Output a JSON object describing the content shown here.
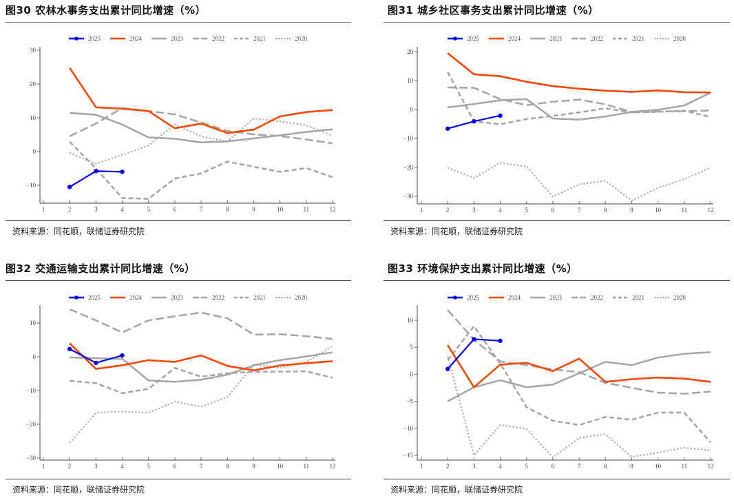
{
  "source_label": "资料来源：同花顺，联储证券研究院",
  "legend": [
    {
      "name": "2025",
      "color": "#0000FF",
      "style": "solid-marker"
    },
    {
      "name": "2024",
      "color": "#FF4500",
      "style": "solid"
    },
    {
      "name": "2023",
      "color": "#A6A6A6",
      "style": "solid"
    },
    {
      "name": "2022",
      "color": "#A6A6A6",
      "style": "longdash"
    },
    {
      "name": "2021",
      "color": "#A6A6A6",
      "style": "dash"
    },
    {
      "name": "2020",
      "color": "#A6A6A6",
      "style": "dot"
    }
  ],
  "chart_data": [
    {
      "type": "line",
      "title": "图30 农林水事务支出累计同比增速（%）",
      "xlabel": "",
      "ylabel": "",
      "x": [
        1,
        2,
        3,
        4,
        5,
        6,
        7,
        8,
        9,
        10,
        11,
        12
      ],
      "xticks": [
        "1",
        "2",
        "3",
        "4",
        "5",
        "6",
        "7",
        "8",
        "9",
        "10",
        "11",
        "12"
      ],
      "ylim": [
        -15,
        31
      ],
      "yticks": [
        30,
        20,
        10,
        0,
        -10
      ],
      "grid": false,
      "legend_position": "top",
      "series": [
        {
          "name": "2025",
          "values": [
            null,
            -10.5,
            -5.8,
            -6.0,
            null,
            null,
            null,
            null,
            null,
            null,
            null,
            null
          ]
        },
        {
          "name": "2024",
          "values": [
            null,
            24.8,
            13.1,
            12.7,
            12.0,
            6.9,
            8.3,
            5.5,
            6.5,
            10.4,
            11.7,
            12.3
          ]
        },
        {
          "name": "2023",
          "values": [
            null,
            11.4,
            10.9,
            8.0,
            4.2,
            3.8,
            2.7,
            3.0,
            3.9,
            4.8,
            5.8,
            6.6
          ]
        },
        {
          "name": "2022",
          "values": [
            null,
            4.5,
            8.3,
            12.9,
            12.0,
            11.0,
            8.6,
            6.1,
            5.1,
            4.6,
            3.6,
            2.4
          ]
        },
        {
          "name": "2021",
          "values": [
            null,
            2.9,
            -5.0,
            -13.8,
            -14.0,
            -8.0,
            -6.5,
            -3.0,
            -4.5,
            -6.0,
            -4.9,
            -7.6
          ]
        },
        {
          "name": "2020",
          "values": [
            null,
            -0.4,
            -3.6,
            -1.0,
            1.8,
            8.0,
            4.5,
            3.0,
            9.8,
            8.9,
            7.8,
            4.7
          ]
        }
      ]
    },
    {
      "type": "line",
      "title": "图31 城乡社区事务支出累计同比增速（%）",
      "xlabel": "",
      "ylabel": "",
      "x": [
        1,
        2,
        3,
        4,
        5,
        6,
        7,
        8,
        9,
        10,
        11,
        12
      ],
      "xticks": [
        "1",
        "2",
        "3",
        "4",
        "5",
        "6",
        "7",
        "8",
        "9",
        "10",
        "11",
        "12"
      ],
      "ylim": [
        -33,
        22
      ],
      "yticks": [
        20,
        10,
        0,
        -10,
        -20,
        -30
      ],
      "grid": false,
      "legend_position": "top",
      "series": [
        {
          "name": "2025",
          "values": [
            null,
            -6.6,
            -4.1,
            -2.1,
            null,
            null,
            null,
            null,
            null,
            null,
            null,
            null
          ]
        },
        {
          "name": "2024",
          "values": [
            null,
            19.5,
            12.2,
            11.5,
            9.6,
            8.1,
            7.2,
            6.5,
            6.1,
            6.6,
            6.0,
            5.9
          ]
        },
        {
          "name": "2023",
          "values": [
            null,
            0.7,
            1.9,
            3.2,
            3.6,
            -3.1,
            -3.5,
            -2.4,
            -0.8,
            -0.1,
            1.4,
            5.8
          ]
        },
        {
          "name": "2022",
          "values": [
            null,
            7.6,
            7.5,
            3.6,
            1.5,
            2.7,
            3.4,
            1.8,
            -0.9,
            -0.7,
            -0.6,
            -0.3
          ]
        },
        {
          "name": "2021",
          "values": [
            null,
            13.0,
            -4.1,
            -5.1,
            -3.3,
            -2.2,
            -1.0,
            0.4,
            -1.0,
            -0.8,
            -0.4,
            -2.6
          ]
        },
        {
          "name": "2020",
          "values": [
            null,
            -20.1,
            -23.7,
            -18.4,
            -19.7,
            -30.1,
            -25.9,
            -24.6,
            -31.5,
            -27.1,
            -24.1,
            -20.1
          ]
        }
      ]
    },
    {
      "type": "line",
      "title": "图32 交通运输支出累计同比增速（%）",
      "xlabel": "",
      "ylabel": "",
      "x": [
        1,
        2,
        3,
        4,
        5,
        6,
        7,
        8,
        9,
        10,
        11,
        12
      ],
      "xticks": [
        "1",
        "2",
        "3",
        "4",
        "5",
        "6",
        "7",
        "8",
        "9",
        "10",
        "11",
        "12"
      ],
      "ylim": [
        -31,
        15
      ],
      "yticks": [
        10,
        0,
        -10,
        -20,
        -30
      ],
      "grid": false,
      "legend_position": "top",
      "series": [
        {
          "name": "2025",
          "values": [
            null,
            2.3,
            -1.8,
            0.4,
            null,
            null,
            null,
            null,
            null,
            null,
            null,
            null
          ]
        },
        {
          "name": "2024",
          "values": [
            null,
            4.0,
            -3.6,
            -2.5,
            -1.0,
            -1.5,
            0.4,
            -2.7,
            -4.0,
            -2.6,
            -1.9,
            -1.3
          ]
        },
        {
          "name": "2023",
          "values": [
            null,
            -0.2,
            -0.4,
            -0.6,
            -7.0,
            -7.4,
            -6.8,
            -5.3,
            -2.5,
            -1.0,
            0.1,
            1.3
          ]
        },
        {
          "name": "2022",
          "values": [
            null,
            14.1,
            10.8,
            7.2,
            10.8,
            12.0,
            13.1,
            11.4,
            6.6,
            6.7,
            6.1,
            5.3
          ]
        },
        {
          "name": "2021",
          "values": [
            null,
            -7.1,
            -7.8,
            -10.8,
            -9.5,
            -3.3,
            -5.9,
            -4.9,
            -4.4,
            -4.4,
            -4.3,
            -6.2
          ]
        },
        {
          "name": "2020",
          "values": [
            null,
            -25.5,
            -16.6,
            -16.2,
            -16.6,
            -13.3,
            -14.8,
            -11.9,
            -2.3,
            -3.2,
            -1.6,
            3.2
          ]
        }
      ]
    },
    {
      "type": "line",
      "title": "图33 环境保护支出累计同比增速（%）",
      "xlabel": "",
      "ylabel": "",
      "x": [
        1,
        2,
        3,
        4,
        5,
        6,
        7,
        8,
        9,
        10,
        11,
        12
      ],
      "xticks": [
        "1",
        "2",
        "3",
        "4",
        "5",
        "6",
        "7",
        "8",
        "9",
        "10",
        "11",
        "12"
      ],
      "ylim": [
        -16,
        12.5
      ],
      "yticks": [
        10,
        5,
        0,
        -5,
        -10,
        -15
      ],
      "grid": false,
      "legend_position": "top",
      "series": [
        {
          "name": "2025",
          "values": [
            null,
            1.0,
            6.5,
            6.2,
            null,
            null,
            null,
            null,
            null,
            null,
            null,
            null
          ]
        },
        {
          "name": "2024",
          "values": [
            null,
            5.4,
            -2.4,
            1.8,
            2.1,
            0.6,
            2.9,
            -1.4,
            -0.9,
            -0.6,
            -0.8,
            -1.4
          ]
        },
        {
          "name": "2023",
          "values": [
            null,
            -5.0,
            -2.4,
            -1.1,
            -2.4,
            -1.9,
            0.2,
            2.3,
            1.7,
            3.1,
            3.8,
            4.1
          ]
        },
        {
          "name": "2022",
          "values": [
            null,
            11.9,
            6.4,
            2.4,
            1.7,
            0.9,
            0.4,
            -1.6,
            -2.5,
            -3.4,
            -3.6,
            -3.2
          ]
        },
        {
          "name": "2021",
          "values": [
            null,
            2.6,
            8.9,
            2.0,
            -6.1,
            -8.6,
            -9.4,
            -7.9,
            -8.4,
            -7.1,
            -7.1,
            -12.6
          ]
        },
        {
          "name": "2020",
          "values": [
            null,
            3.3,
            -15.0,
            -9.4,
            -10.1,
            -15.4,
            -11.8,
            -11.1,
            -15.3,
            -14.5,
            -13.6,
            -14.1
          ]
        }
      ]
    }
  ]
}
